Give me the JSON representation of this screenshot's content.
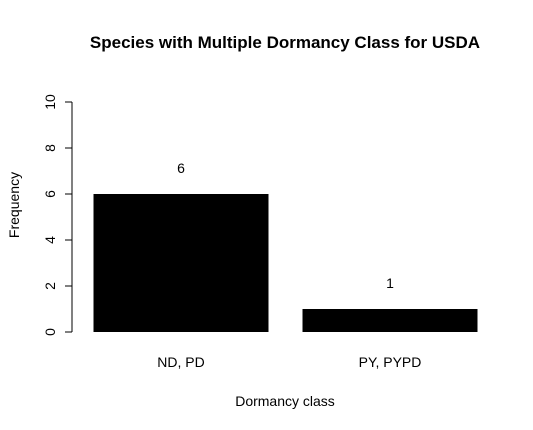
{
  "chart_data": {
    "type": "bar",
    "title": "Species with Multiple Dormancy Class for USDA",
    "xlabel": "Dormancy class",
    "ylabel": "Frequency",
    "categories": [
      "ND, PD",
      "PY, PYPD"
    ],
    "values": [
      6,
      1
    ],
    "data_labels": [
      "6",
      "1"
    ],
    "ylim": [
      0,
      10
    ],
    "yticks": [
      "0",
      "2",
      "4",
      "6",
      "8",
      "10"
    ],
    "bar_color": "#000000",
    "grid": false,
    "legend": "none"
  }
}
